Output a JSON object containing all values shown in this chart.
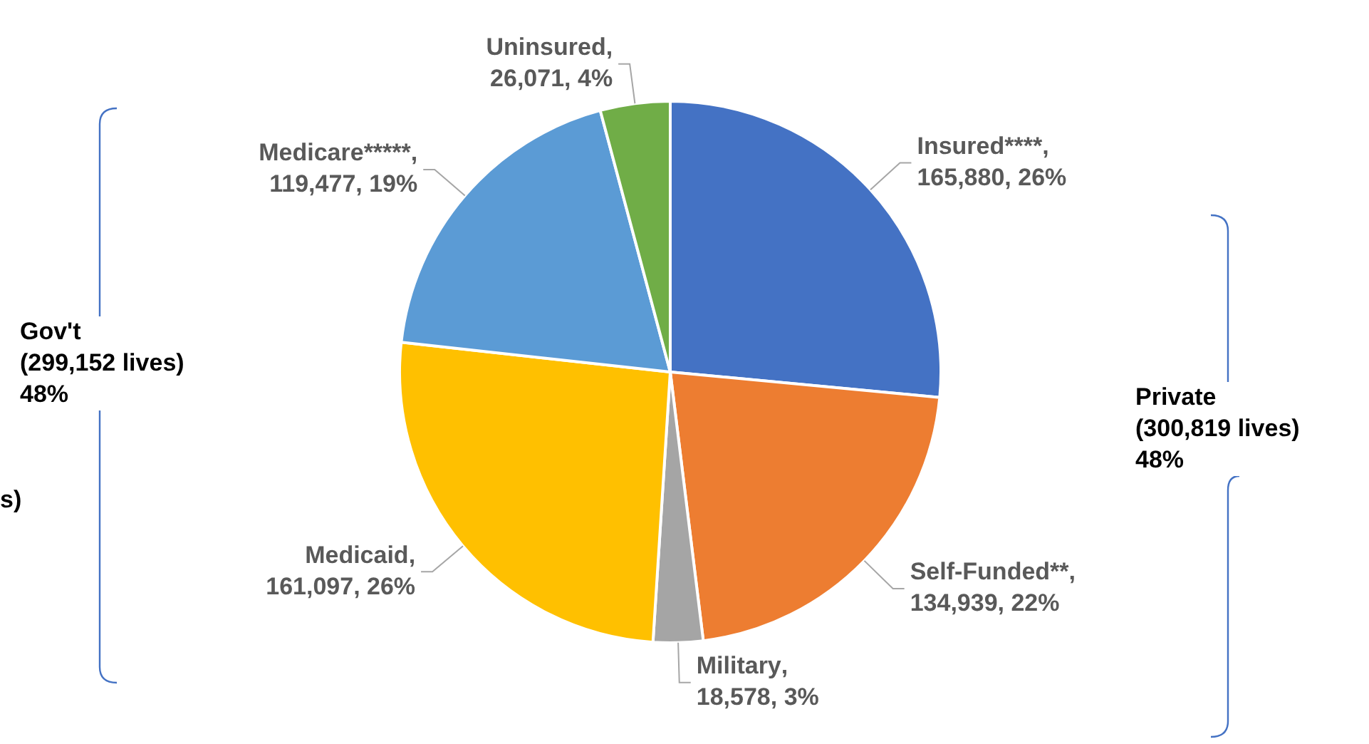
{
  "chart_data": {
    "type": "pie",
    "categories": [
      "Insured****",
      "Self-Funded**",
      "Military",
      "Medicaid",
      "Medicare*****",
      "Uninsured"
    ],
    "values": [
      165880,
      134939,
      18578,
      161097,
      119477,
      26071
    ],
    "colors": [
      "#4472c4",
      "#ed7d31",
      "#a5a5a5",
      "#ffc000",
      "#5b9bd5",
      "#70ad47"
    ],
    "value_labels": [
      ", 165,880, 26%",
      ", 134,939, 22%",
      ", 18,578, 3%",
      ", 161,097, 26%",
      ", 119,477, 19%",
      ", 26,071, 4%"
    ],
    "annotations": [
      "Gov't\n(299,152 lives)\n48%",
      "Private\n(300,819 lives)\n48%",
      "s)"
    ],
    "legend": false
  }
}
